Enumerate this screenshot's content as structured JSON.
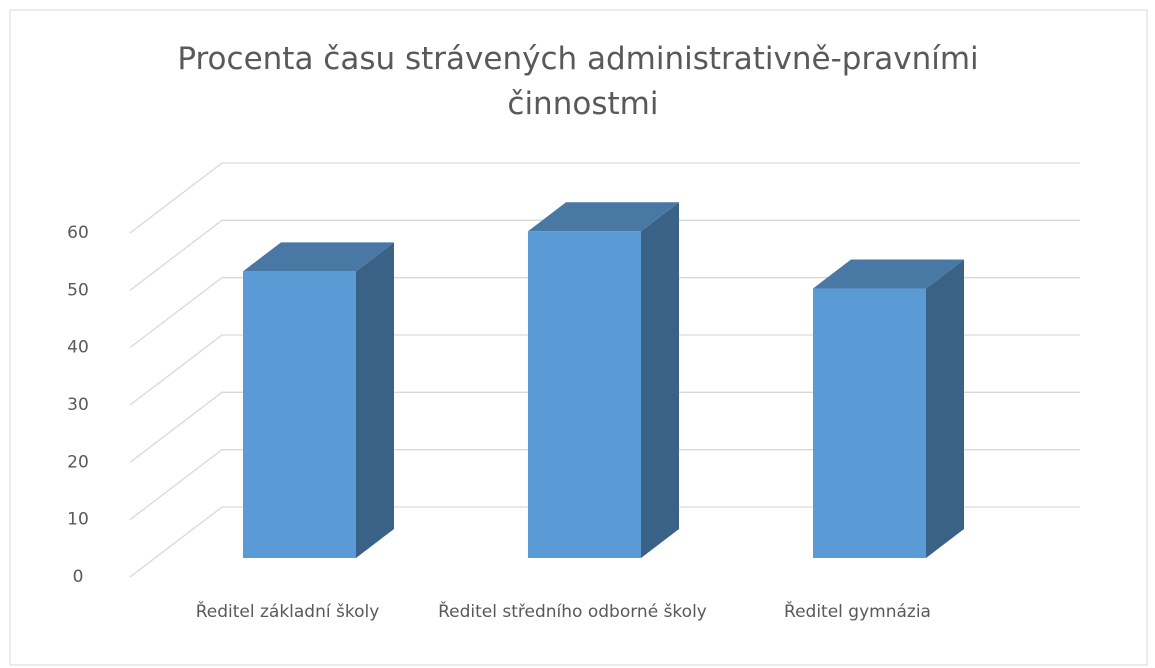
{
  "chart_data": {
    "type": "bar3d",
    "title": "Procenta času strávených administrativně-pravními činnostmi",
    "categories": [
      "Ředitel základní školy",
      "Ředitel středního odborné školy",
      "Ředitel gymnázia"
    ],
    "values": [
      50,
      57,
      47
    ],
    "color": "#5b9bd5",
    "ylim": [
      0,
      60
    ],
    "yticks": [
      0,
      10,
      20,
      30,
      40,
      50,
      60
    ],
    "grid": true
  }
}
